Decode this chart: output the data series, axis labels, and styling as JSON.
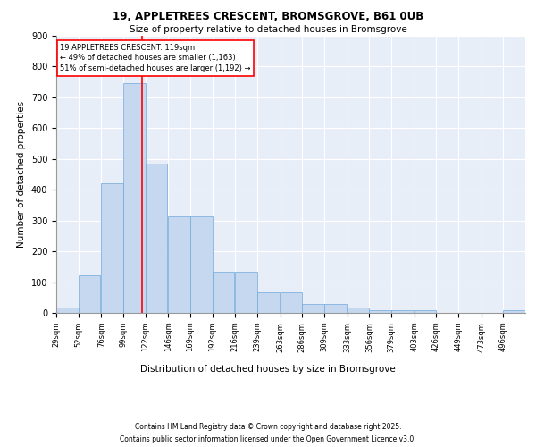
{
  "title1": "19, APPLETREES CRESCENT, BROMSGROVE, B61 0UB",
  "title2": "Size of property relative to detached houses in Bromsgrove",
  "xlabel": "Distribution of detached houses by size in Bromsgrove",
  "ylabel": "Number of detached properties",
  "bar_values": [
    18,
    122,
    422,
    745,
    485,
    315,
    315,
    133,
    133,
    68,
    68,
    30,
    30,
    18,
    10,
    8,
    8,
    0,
    0,
    0,
    8
  ],
  "bin_edges": [
    29,
    52,
    76,
    99,
    122,
    146,
    169,
    192,
    216,
    239,
    263,
    286,
    309,
    333,
    356,
    379,
    403,
    426,
    449,
    473,
    496
  ],
  "tick_labels": [
    "29sqm",
    "52sqm",
    "76sqm",
    "99sqm",
    "122sqm",
    "146sqm",
    "169sqm",
    "192sqm",
    "216sqm",
    "239sqm",
    "263sqm",
    "286sqm",
    "309sqm",
    "333sqm",
    "356sqm",
    "379sqm",
    "403sqm",
    "426sqm",
    "449sqm",
    "473sqm",
    "496sqm"
  ],
  "bar_color": "#c5d8f0",
  "bar_edge_color": "#6fa8d8",
  "vline_x": 119,
  "vline_color": "red",
  "annotation_text": "19 APPLETREES CRESCENT: 119sqm\n← 49% of detached houses are smaller (1,163)\n51% of semi-detached houses are larger (1,192) →",
  "annotation_box_color": "white",
  "annotation_box_edge": "red",
  "ylim": [
    0,
    900
  ],
  "yticks": [
    0,
    100,
    200,
    300,
    400,
    500,
    600,
    700,
    800,
    900
  ],
  "background_color": "#e8eef8",
  "footer1": "Contains HM Land Registry data © Crown copyright and database right 2025.",
  "footer2": "Contains public sector information licensed under the Open Government Licence v3.0."
}
